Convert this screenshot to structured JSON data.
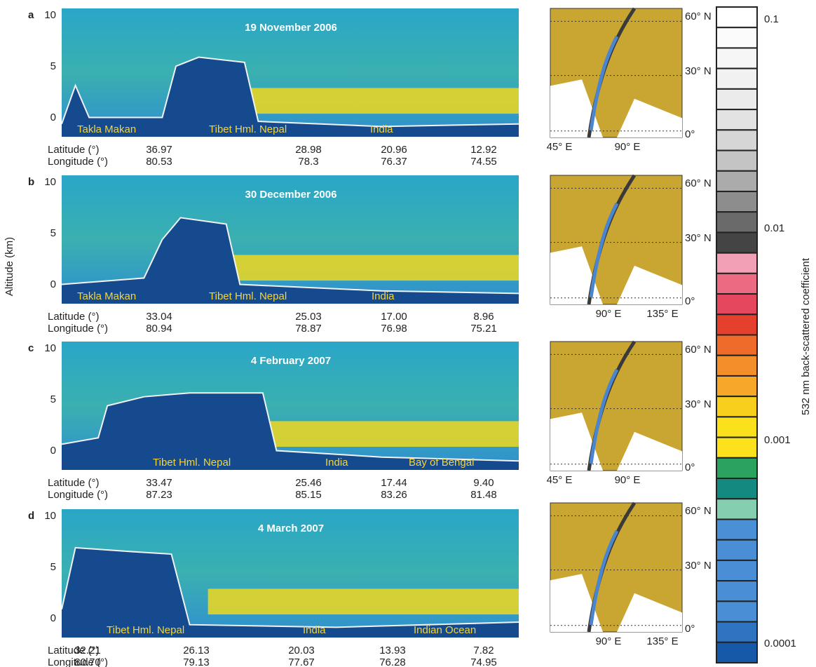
{
  "y_axis_label": "Altitude (km)",
  "colorbar": {
    "title": "532 nm back-scattered coefficient",
    "labels": [
      "0.1",
      "0.01",
      "0.001",
      "0.0001"
    ]
  },
  "panels": [
    {
      "letter": "a",
      "date": "19 November 2006",
      "yticks": [
        "10",
        "5",
        "0"
      ],
      "regions": [
        "Takla Makan",
        "Tibet Hml. Nepal",
        "India"
      ],
      "latitude_label": "Latitude (°)",
      "longitude_label": "Longitude (°)",
      "latitudes": [
        "36.97",
        "28.98",
        "20.96",
        "12.92"
      ],
      "longitudes": [
        "80.53",
        "78.3",
        "76.37",
        "74.55"
      ],
      "map": {
        "lat_labels": [
          "60° N",
          "30° N",
          "0°"
        ],
        "lon_labels": [
          "45° E",
          "90° E"
        ]
      }
    },
    {
      "letter": "b",
      "date": "30 December 2006",
      "yticks": [
        "10",
        "5",
        "0"
      ],
      "regions": [
        "Takla Makan",
        "Tibet Hml. Nepal",
        "India"
      ],
      "latitude_label": "Latitude (°)",
      "longitude_label": "Longitude (°)",
      "latitudes": [
        "33.04",
        "25.03",
        "17.00",
        "8.96"
      ],
      "longitudes": [
        "80.94",
        "78.87",
        "76.98",
        "75.21"
      ],
      "map": {
        "lat_labels": [
          "60° N",
          "30° N",
          "0°"
        ],
        "lon_labels": [
          "90° E",
          "135° E"
        ]
      }
    },
    {
      "letter": "c",
      "date": "4 February 2007",
      "yticks": [
        "10",
        "5",
        "0"
      ],
      "regions": [
        "Tibet Hml. Nepal",
        "India",
        "Bay of Bengal"
      ],
      "latitude_label": "Latitude (°)",
      "longitude_label": "Longitude (°)",
      "latitudes": [
        "33.47",
        "25.46",
        "17.44",
        "9.40"
      ],
      "longitudes": [
        "87.23",
        "85.15",
        "83.26",
        "81.48"
      ],
      "map": {
        "lat_labels": [
          "60° N",
          "30° N",
          "0°"
        ],
        "lon_labels": [
          "45° E",
          "90° E"
        ]
      }
    },
    {
      "letter": "d",
      "date": "4 March 2007",
      "yticks": [
        "10",
        "5",
        "0"
      ],
      "regions": [
        "Tibet Hml. Nepal",
        "India",
        "Indian Ocean"
      ],
      "latitude_label": "Latitude (°)",
      "longitude_label": "Longitude (°)",
      "latitudes": [
        "32.21",
        "26.13",
        "20.03",
        "13.93",
        "7.82"
      ],
      "longitudes": [
        "80.70",
        "79.13",
        "77.67",
        "76.28",
        "74.95"
      ],
      "map": {
        "lat_labels": [
          "60° N",
          "30° N",
          "0°"
        ],
        "lon_labels": [
          "90° E",
          "135° E"
        ]
      }
    }
  ]
}
